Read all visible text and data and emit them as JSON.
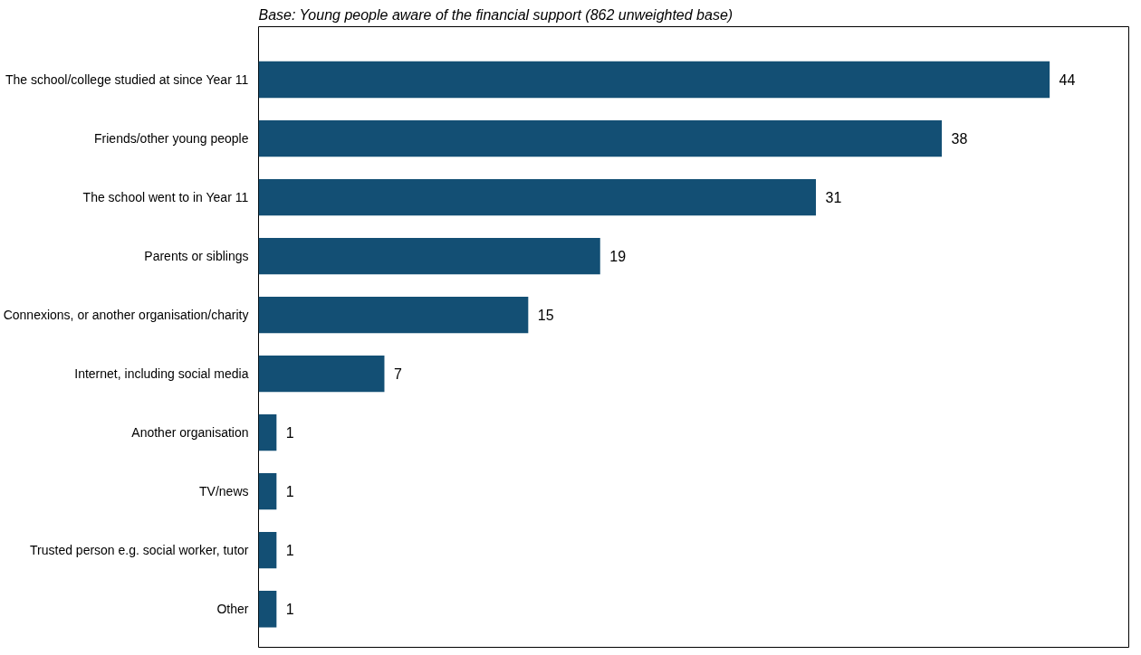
{
  "chart_data": {
    "type": "bar",
    "orientation": "horizontal",
    "subtitle": "Base: Young people aware of the financial support (862 unweighted base)",
    "categories": [
      "The school/college studied at since Year 11",
      "Friends/other young people",
      "The school went to in Year 11",
      "Parents or siblings",
      "Connexions, or another organisation/charity",
      "Internet, including social media",
      "Another organisation",
      "TV/news",
      "Trusted person e.g. social worker, tutor",
      "Other"
    ],
    "values": [
      44,
      38,
      31,
      19,
      15,
      7,
      1,
      1,
      1,
      1
    ],
    "color": "#134f74",
    "data_labels": true
  }
}
